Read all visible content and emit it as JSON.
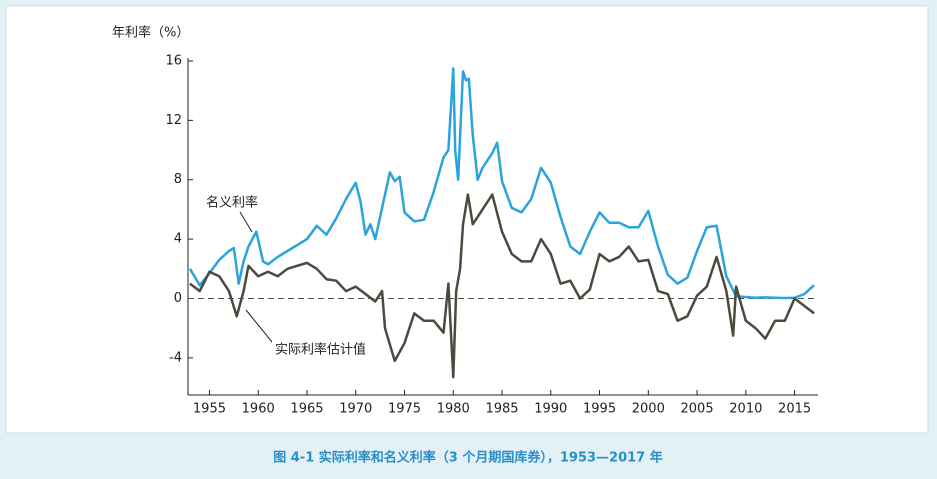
{
  "chart_data": {
    "type": "line",
    "title": "图 4-1   实际利率和名义利率（3 个月期国库券），1953—2017 年",
    "y_label": "年利率（%）",
    "annotations": [
      {
        "text": "名义利率"
      },
      {
        "text": "实际利率估计值"
      }
    ],
    "xlim": [
      1952.8,
      2017.4
    ],
    "ylim": [
      -6.5,
      16.2
    ],
    "xticks": [
      1955,
      1960,
      1965,
      1970,
      1975,
      1980,
      1985,
      1990,
      1995,
      2000,
      2005,
      2010,
      2015
    ],
    "yticks": [
      16,
      12,
      8,
      4,
      0,
      -4
    ],
    "reference_line": 0,
    "series": [
      {
        "name": "名义利率",
        "color": "#2ba3dc",
        "x": [
          1953,
          1954,
          1955,
          1956,
          1957,
          1957.5,
          1958,
          1958.5,
          1959,
          1959.8,
          1960.5,
          1961,
          1962,
          1963,
          1964,
          1965,
          1966,
          1967,
          1968,
          1969,
          1970,
          1970.5,
          1971,
          1971.5,
          1972,
          1973,
          1973.5,
          1974,
          1974.5,
          1975,
          1976,
          1977,
          1978,
          1979,
          1979.5,
          1980,
          1980.2,
          1980.5,
          1981,
          1981.3,
          1981.6,
          1982,
          1982.5,
          1983,
          1984,
          1984.5,
          1985,
          1986,
          1987,
          1988,
          1989,
          1990,
          1991,
          1992,
          1993,
          1994,
          1995,
          1996,
          1997,
          1998,
          1999,
          2000,
          2001,
          2002,
          2003,
          2004,
          2005,
          2006,
          2007,
          2008,
          2009,
          2010,
          2011,
          2012,
          2013,
          2014,
          2015,
          2016,
          2017
        ],
        "values": [
          2.0,
          0.9,
          1.7,
          2.6,
          3.2,
          3.4,
          1.0,
          2.5,
          3.5,
          4.5,
          2.5,
          2.3,
          2.8,
          3.2,
          3.6,
          4.0,
          4.9,
          4.3,
          5.4,
          6.7,
          7.8,
          6.5,
          4.3,
          5.0,
          4.0,
          7.0,
          8.5,
          7.9,
          8.2,
          5.8,
          5.2,
          5.3,
          7.2,
          9.5,
          10.0,
          15.5,
          10.0,
          8.0,
          15.3,
          14.7,
          14.8,
          11.0,
          8.0,
          8.8,
          9.8,
          10.5,
          7.9,
          6.1,
          5.8,
          6.7,
          8.8,
          7.8,
          5.5,
          3.5,
          3.0,
          4.5,
          5.8,
          5.1,
          5.1,
          4.8,
          4.8,
          5.9,
          3.5,
          1.6,
          1.0,
          1.4,
          3.2,
          4.8,
          4.9,
          1.5,
          0.15,
          0.1,
          0.05,
          0.08,
          0.05,
          0.03,
          0.05,
          0.3,
          0.9
        ]
      },
      {
        "name": "实际利率估计值",
        "color": "#4a4a3e",
        "x": [
          1953,
          1954,
          1955,
          1956,
          1957,
          1957.8,
          1958.5,
          1959,
          1960,
          1961,
          1962,
          1963,
          1964,
          1965,
          1966,
          1967,
          1968,
          1969,
          1970,
          1971,
          1972,
          1972.7,
          1973,
          1974,
          1975,
          1976,
          1977,
          1978,
          1979,
          1979.5,
          1980,
          1980.3,
          1980.7,
          1981,
          1981.5,
          1982,
          1983,
          1984,
          1985,
          1986,
          1987,
          1988,
          1989,
          1990,
          1991,
          1992,
          1993,
          1994,
          1995,
          1996,
          1997,
          1998,
          1999,
          2000,
          2001,
          2002,
          2003,
          2004,
          2005,
          2006,
          2007,
          2008,
          2008.7,
          2009,
          2010,
          2011,
          2012,
          2013,
          2014,
          2015,
          2016,
          2017
        ],
        "values": [
          1.0,
          0.5,
          1.8,
          1.5,
          0.5,
          -1.2,
          0.5,
          2.2,
          1.5,
          1.8,
          1.5,
          2.0,
          2.2,
          2.4,
          2.0,
          1.3,
          1.2,
          0.5,
          0.8,
          0.3,
          -0.2,
          0.5,
          -2.0,
          -4.2,
          -3.0,
          -1.0,
          -1.5,
          -1.5,
          -2.3,
          1.0,
          -5.3,
          0.5,
          2.0,
          5.0,
          7.0,
          5.0,
          6.0,
          7.0,
          4.5,
          3.0,
          2.5,
          2.5,
          4.0,
          3.0,
          1.0,
          1.2,
          0.0,
          0.6,
          3.0,
          2.5,
          2.8,
          3.5,
          2.5,
          2.6,
          0.5,
          0.3,
          -1.5,
          -1.2,
          0.2,
          0.8,
          2.8,
          0.5,
          -2.5,
          0.8,
          -1.5,
          -2.0,
          -2.7,
          -1.5,
          -1.5,
          0.0,
          -0.5,
          -1.0
        ]
      }
    ]
  }
}
